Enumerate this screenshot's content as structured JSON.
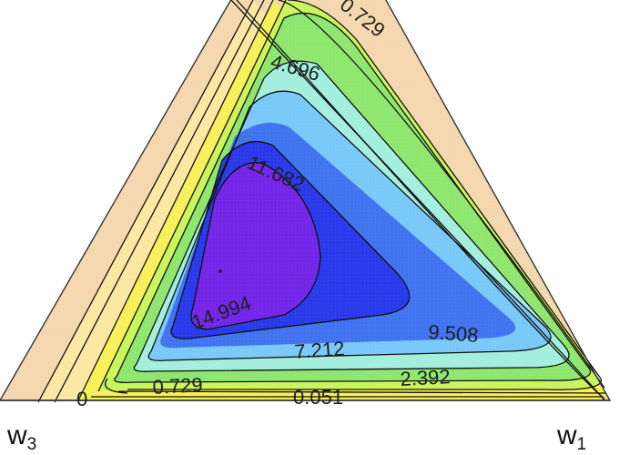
{
  "chart_data": {
    "type": "ternary-contour",
    "corner_labels": [
      {
        "key": "w3",
        "base": "w",
        "sub": "3"
      },
      {
        "key": "w1",
        "base": "w",
        "sub": "1"
      }
    ],
    "contour_levels": [
      "0",
      "0.051",
      "0.729",
      "2.392",
      "4.696",
      "7.212",
      "9.508",
      "11.682",
      "14.994"
    ],
    "colors": {
      "band_0": "#f4d7ae",
      "band_1": "#fce7a2",
      "band_2": "#f8f058",
      "band_3": "#caf45c",
      "band_4": "#8ee66e",
      "band_5": "#a3eedd",
      "band_6": "#79c8f7",
      "band_7": "#3f72ef",
      "band_8": "#2738ea",
      "band_9": "#7224e8",
      "line": "#111111",
      "frame": "#333333"
    }
  }
}
